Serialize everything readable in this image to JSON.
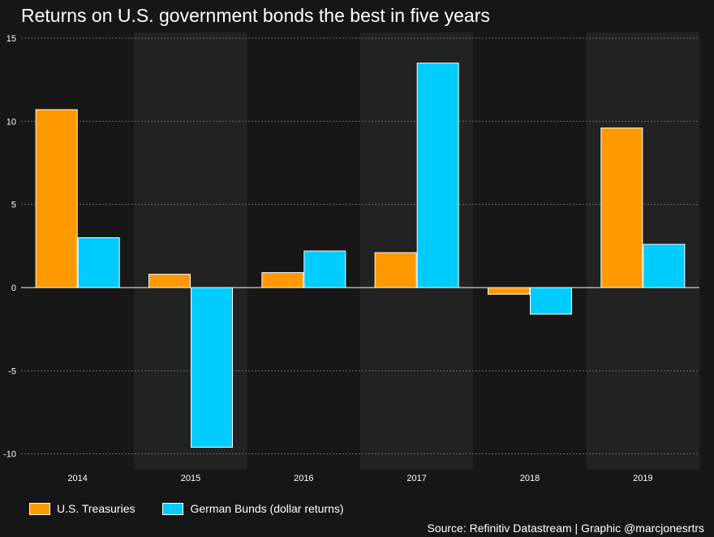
{
  "chart_data": {
    "type": "bar",
    "title": "Returns on U.S. government bonds the best in five years",
    "categories": [
      "2014",
      "2015",
      "2016",
      "2017",
      "2018",
      "2019"
    ],
    "series": [
      {
        "name": "U.S. Treasuries",
        "color": "#ff9900",
        "values": [
          10.7,
          0.8,
          0.9,
          2.1,
          -0.4,
          9.6
        ]
      },
      {
        "name": "German Bunds (dollar returns)",
        "color": "#00ccff",
        "values": [
          3.0,
          -9.6,
          2.2,
          13.5,
          -1.6,
          2.6
        ]
      }
    ],
    "yticks": [
      15,
      10,
      5,
      0,
      -5,
      -10
    ],
    "ytick_labels": [
      "15",
      "10",
      "5",
      "0",
      "-5",
      "-10"
    ],
    "ylim": [
      -11,
      15
    ],
    "xlabel": "",
    "ylabel": "",
    "grid": true,
    "legend_position": "bottom-left",
    "source": "Source: Refinitiv Datastream | Graphic @marcjonesrtrs"
  }
}
